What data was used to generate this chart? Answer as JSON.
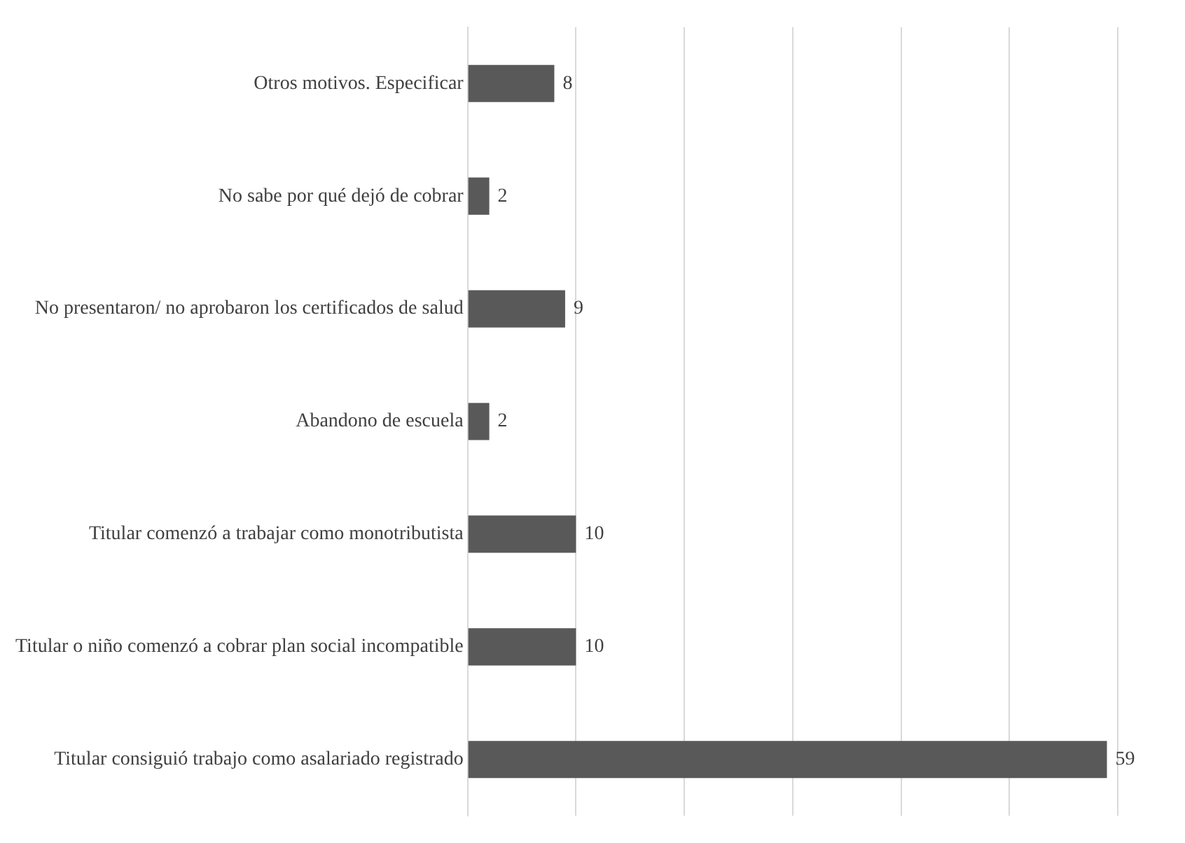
{
  "chart_data": {
    "type": "bar",
    "orientation": "horizontal",
    "categories": [
      "Otros motivos. Especificar",
      "No sabe por qué dejó de cobrar",
      "No presentaron/ no aprobaron los certificados de salud",
      "Abandono de escuela",
      "Titular comenzó a trabajar como monotributista",
      "Titular o niño comenzó a cobrar plan social incompatible",
      "Titular consiguió trabajo como asalariado registrado"
    ],
    "values": [
      8,
      2,
      9,
      2,
      10,
      10,
      59
    ],
    "color": "#595959",
    "xlim": [
      0,
      60
    ],
    "xticks": [
      {
        "value": 0,
        "label": null
      },
      {
        "value": 10,
        "label": null
      },
      {
        "value": 20,
        "label": null
      },
      {
        "value": 30,
        "label": null
      },
      {
        "value": 40,
        "label": null
      },
      {
        "value": 50,
        "label": null
      },
      {
        "value": 60,
        "label": null
      }
    ],
    "grid": "x",
    "tick_labels": "y",
    "data_labels": true,
    "legend": false
  }
}
